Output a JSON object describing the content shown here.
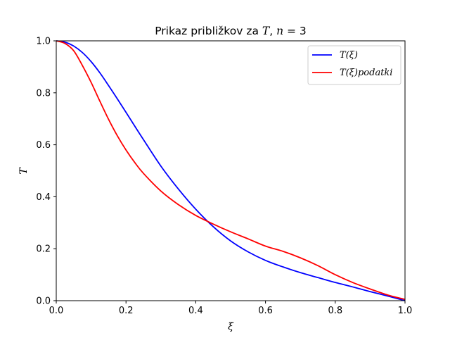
{
  "chart_data": {
    "type": "line",
    "title": "Prikaz približkov za T, n = 3",
    "title_parts": {
      "prefix": "Prikaz približkov za ",
      "var": "T",
      "sep": ", ",
      "n_label": "n",
      "eq": " = ",
      "n_value": "3"
    },
    "xlabel": "ξ",
    "ylabel": "T",
    "xlim": [
      0.0,
      1.0
    ],
    "ylim": [
      0.0,
      1.0
    ],
    "xticks": [
      0.0,
      0.2,
      0.4,
      0.6,
      0.8,
      1.0
    ],
    "xtick_labels": [
      "0.0",
      "0.2",
      "0.4",
      "0.6",
      "0.8",
      "1.0"
    ],
    "yticks": [
      0.0,
      0.2,
      0.4,
      0.6,
      0.8,
      1.0
    ],
    "ytick_labels": [
      "0.0",
      "0.2",
      "0.4",
      "0.6",
      "0.8",
      "1.0"
    ],
    "grid": false,
    "legend_position": "top-right",
    "series": [
      {
        "name": "T(ξ)",
        "color": "#0000ff",
        "x": [
          0.0,
          0.025,
          0.05,
          0.075,
          0.1,
          0.125,
          0.15,
          0.175,
          0.2,
          0.225,
          0.25,
          0.3,
          0.35,
          0.4,
          0.45,
          0.5,
          0.55,
          0.6,
          0.65,
          0.7,
          0.75,
          0.8,
          0.85,
          0.9,
          0.95,
          1.0
        ],
        "y": [
          1.0,
          0.995,
          0.98,
          0.955,
          0.92,
          0.877,
          0.828,
          0.777,
          0.725,
          0.672,
          0.62,
          0.518,
          0.43,
          0.352,
          0.285,
          0.23,
          0.188,
          0.155,
          0.13,
          0.108,
          0.089,
          0.07,
          0.053,
          0.035,
          0.018,
          0.0
        ]
      },
      {
        "name": "T(ξ)podatki",
        "color": "#ff0000",
        "x": [
          0.0,
          0.025,
          0.05,
          0.075,
          0.1,
          0.125,
          0.15,
          0.175,
          0.2,
          0.225,
          0.25,
          0.3,
          0.35,
          0.4,
          0.45,
          0.5,
          0.55,
          0.6,
          0.65,
          0.7,
          0.75,
          0.8,
          0.85,
          0.9,
          0.95,
          1.0
        ],
        "y": [
          1.0,
          0.99,
          0.962,
          0.905,
          0.84,
          0.768,
          0.698,
          0.635,
          0.58,
          0.532,
          0.49,
          0.422,
          0.37,
          0.328,
          0.295,
          0.265,
          0.238,
          0.21,
          0.19,
          0.165,
          0.135,
          0.1,
          0.07,
          0.045,
          0.022,
          0.005
        ]
      }
    ]
  }
}
